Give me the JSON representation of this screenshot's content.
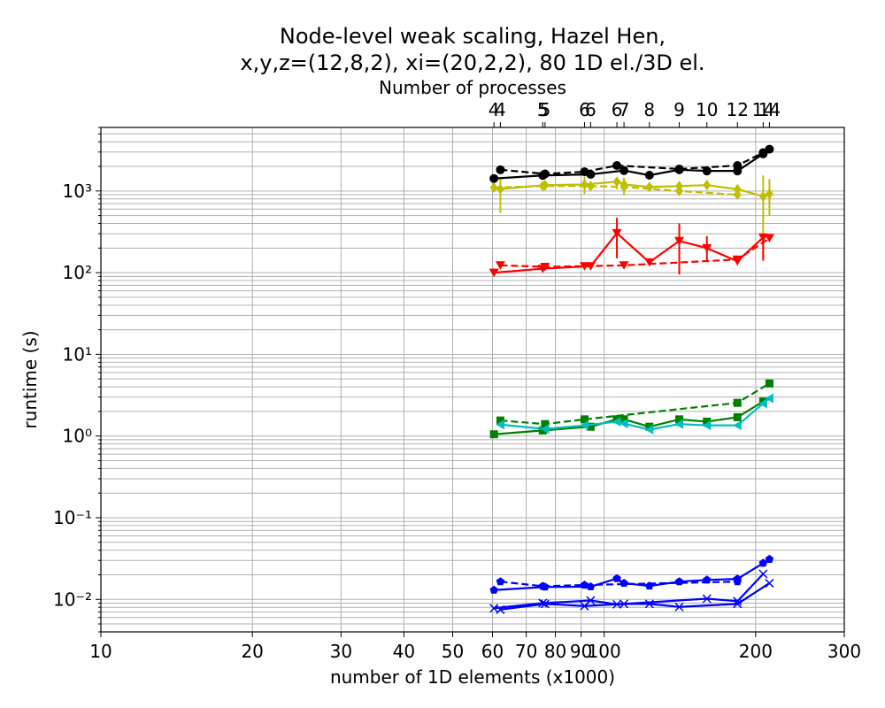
{
  "chart_data": {
    "type": "line",
    "title": [
      "Node-level weak scaling, Hazel Hen,",
      "x,y,z=(12,8,2), xi=(20,2,2), 80 1D el./3D el."
    ],
    "xlabel": "number of 1D elements (x1000)",
    "ylabel": "runtime (s)",
    "top_xlabel": "Number of processes",
    "x_scale": "log",
    "y_scale": "log",
    "xlim": [
      10,
      300
    ],
    "ylim": [
      0.004,
      6000
    ],
    "grid": true,
    "x_ticks": [
      10,
      20,
      30,
      40,
      50,
      60,
      70,
      80,
      90,
      100,
      200,
      300
    ],
    "x_tick_labels": [
      "10",
      "20",
      "30",
      "40",
      "50",
      "60",
      "70",
      "80",
      "90",
      "100",
      "200",
      "300"
    ],
    "y_ticks": [
      0.01,
      0.1,
      1,
      10,
      100,
      1000
    ],
    "y_tick_labels": [
      "10⁻²",
      "10⁻¹",
      "10⁰",
      "10¹",
      "10²",
      "10³"
    ],
    "top_ticks": [
      {
        "x": 60.4,
        "label": "4"
      },
      {
        "x": 62.2,
        "label": "4"
      },
      {
        "x": 75.5,
        "label": "5"
      },
      {
        "x": 76.3,
        "label": "5"
      },
      {
        "x": 91.4,
        "label": "6"
      },
      {
        "x": 94.0,
        "label": "6"
      },
      {
        "x": 106.0,
        "label": "6"
      },
      {
        "x": 109.5,
        "label": "7"
      },
      {
        "x": 123.0,
        "label": "8"
      },
      {
        "x": 141.0,
        "label": "9"
      },
      {
        "x": 160.0,
        "label": "10"
      },
      {
        "x": 184.0,
        "label": "12"
      },
      {
        "x": 207.0,
        "label": "14"
      },
      {
        "x": 213.0,
        "label": "14"
      }
    ],
    "series": [
      {
        "color": "#000000",
        "linestyle": "solid",
        "marker": "circle",
        "x": [
          60.4,
          75.5,
          94.0,
          109.5,
          123.0,
          141.0,
          160.0,
          184.0,
          207.0,
          213.0
        ],
        "y": [
          1420,
          1550,
          1600,
          1780,
          1560,
          1820,
          1760,
          1760,
          2850,
          3250
        ]
      },
      {
        "color": "#000000",
        "linestyle": "dashed",
        "marker": "circle",
        "x": [
          62.2,
          76.3,
          91.4,
          106.0,
          141.0,
          184.0,
          207.0
        ],
        "y": [
          1820,
          1620,
          1720,
          2050,
          1860,
          2050,
          2950
        ]
      },
      {
        "color": "#bfbf00",
        "linestyle": "solid",
        "marker": "diamond",
        "x": [
          62.2,
          76.3,
          91.4,
          106.0,
          109.5,
          123.0,
          141.0,
          160.0,
          184.0,
          207.0,
          213.0
        ],
        "y": [
          1060,
          1180,
          1200,
          1300,
          1200,
          1120,
          1150,
          1180,
          1050,
          860,
          920
        ],
        "yerr_low": [
          540,
          1020,
          920,
          1050,
          900,
          1020,
          1020,
          1050,
          880,
          150,
          500
        ],
        "yerr_high": [
          1400,
          1300,
          1500,
          1450,
          1450,
          1250,
          1300,
          1350,
          1200,
          1550,
          1400
        ]
      },
      {
        "color": "#bfbf00",
        "linestyle": "dashed",
        "marker": "diamond",
        "x": [
          60.4,
          75.5,
          94.0,
          109.5,
          141.0,
          184.0
        ],
        "y": [
          1100,
          1150,
          1150,
          1120,
          1000,
          900
        ]
      },
      {
        "color": "#ff0000",
        "linestyle": "solid",
        "marker": "triangle-down",
        "x": [
          60.4,
          75.5,
          94.0,
          106.0,
          123.0,
          141.0,
          160.0,
          184.0,
          207.0
        ],
        "y": [
          100,
          112,
          120,
          305,
          134,
          245,
          200,
          138,
          270
        ],
        "yerr_low": [
          100,
          112,
          120,
          150,
          134,
          95,
          140,
          138,
          140
        ],
        "yerr_high": [
          100,
          112,
          120,
          470,
          134,
          400,
          280,
          138,
          280
        ]
      },
      {
        "color": "#ff0000",
        "linestyle": "dashed",
        "marker": "triangle-down",
        "x": [
          62.2,
          76.3,
          91.4,
          109.5,
          184.0,
          213.0
        ],
        "y": [
          123,
          118,
          120,
          123,
          145,
          265
        ]
      },
      {
        "color": "#008000",
        "linestyle": "solid",
        "marker": "square",
        "x": [
          60.4,
          75.5,
          94.0,
          106.0,
          109.5,
          123.0,
          141.0,
          160.0,
          184.0,
          207.0
        ],
        "y": [
          1.05,
          1.17,
          1.3,
          1.6,
          1.6,
          1.3,
          1.6,
          1.5,
          1.7,
          2.65
        ]
      },
      {
        "color": "#008000",
        "linestyle": "dashed",
        "marker": "square",
        "x": [
          62.2,
          76.3,
          91.4,
          184.0,
          213.0
        ],
        "y": [
          1.55,
          1.4,
          1.6,
          2.55,
          4.4
        ]
      },
      {
        "color": "#00bfbf",
        "linestyle": "solid",
        "marker": "triangle-left",
        "x": [
          62.2,
          76.3,
          91.4,
          106.0,
          109.5,
          123.0,
          141.0,
          160.0,
          184.0,
          207.0,
          213.0
        ],
        "y": [
          1.38,
          1.22,
          1.35,
          1.5,
          1.42,
          1.2,
          1.4,
          1.35,
          1.35,
          2.5,
          2.9
        ]
      },
      {
        "color": "#0000ff",
        "linestyle": "solid",
        "marker": "pentagon",
        "x": [
          60.4,
          76.3,
          94.0,
          106.0,
          109.5,
          123.0,
          141.0,
          160.0,
          184.0,
          207.0,
          213.0
        ],
        "y": [
          0.013,
          0.0142,
          0.0143,
          0.018,
          0.0158,
          0.0146,
          0.0165,
          0.0173,
          0.0178,
          0.0278,
          0.031
        ]
      },
      {
        "color": "#0000ff",
        "linestyle": "dashed",
        "marker": "pentagon",
        "x": [
          62.2,
          75.5,
          91.4,
          184.0
        ],
        "y": [
          0.0165,
          0.0145,
          0.015,
          0.0165
        ]
      },
      {
        "color": "#0000ff",
        "linestyle": "solid",
        "marker": "x",
        "x": [
          62.2,
          76.3,
          91.4,
          109.5,
          123.0,
          141.0,
          184.0,
          213.0
        ],
        "y": [
          0.0075,
          0.0088,
          0.0083,
          0.0088,
          0.0088,
          0.0081,
          0.0088,
          0.0158
        ]
      },
      {
        "color": "#0000ff",
        "linestyle": "solid",
        "marker": "x",
        "x": [
          60.4,
          75.5,
          94.0,
          106.0,
          160.0,
          184.0,
          207.0
        ],
        "y": [
          0.0078,
          0.009,
          0.0097,
          0.0087,
          0.0102,
          0.0095,
          0.0205
        ]
      }
    ]
  }
}
